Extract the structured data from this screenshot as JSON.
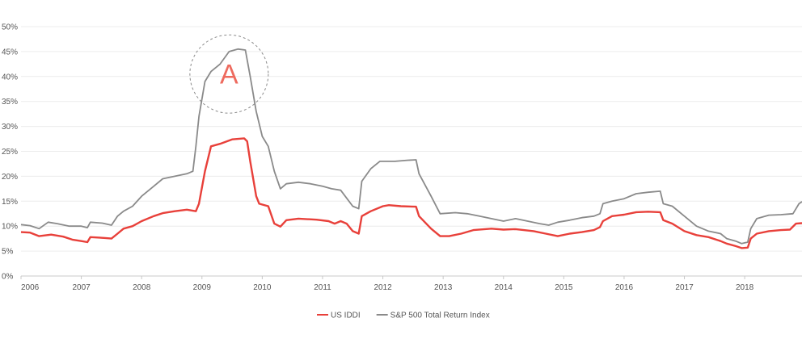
{
  "chart_data": {
    "type": "line",
    "title": "",
    "xlabel": "",
    "ylabel": "",
    "x_range": [
      2006.0,
      2018.95
    ],
    "ylim": [
      0,
      50
    ],
    "y_ticks": [
      0,
      5,
      10,
      15,
      20,
      25,
      30,
      35,
      40,
      45,
      50
    ],
    "y_tick_labels": [
      "0%",
      "5%",
      "10%",
      "15%",
      "20%",
      "25%",
      "30%",
      "35%",
      "40%",
      "45%",
      "50%"
    ],
    "x_ticks": [
      2006,
      2007,
      2008,
      2009,
      2010,
      2011,
      2012,
      2013,
      2014,
      2015,
      2016,
      2017,
      2018
    ],
    "x_tick_labels": [
      "2006",
      "2007",
      "2008",
      "2009",
      "2010",
      "2011",
      "2012",
      "2013",
      "2014",
      "2015",
      "2016",
      "2017",
      "2018"
    ],
    "grid": true,
    "legend_position": "bottom-center",
    "series": [
      {
        "name": "US IDDI",
        "color": "#e8403a",
        "points": [
          [
            2006.0,
            8.8
          ],
          [
            2006.15,
            8.7
          ],
          [
            2006.3,
            8.0
          ],
          [
            2006.5,
            8.3
          ],
          [
            2006.7,
            7.9
          ],
          [
            2006.85,
            7.3
          ],
          [
            2007.0,
            7.0
          ],
          [
            2007.1,
            6.8
          ],
          [
            2007.15,
            7.8
          ],
          [
            2007.3,
            7.7
          ],
          [
            2007.5,
            7.5
          ],
          [
            2007.6,
            8.5
          ],
          [
            2007.7,
            9.5
          ],
          [
            2007.85,
            10.0
          ],
          [
            2008.0,
            11.0
          ],
          [
            2008.2,
            12.0
          ],
          [
            2008.35,
            12.6
          ],
          [
            2008.55,
            13.0
          ],
          [
            2008.75,
            13.3
          ],
          [
            2008.9,
            13.0
          ],
          [
            2008.95,
            14.5
          ],
          [
            2009.05,
            21.0
          ],
          [
            2009.15,
            26.0
          ],
          [
            2009.3,
            26.5
          ],
          [
            2009.5,
            27.4
          ],
          [
            2009.7,
            27.6
          ],
          [
            2009.75,
            27.0
          ],
          [
            2009.8,
            23.0
          ],
          [
            2009.9,
            16.0
          ],
          [
            2009.95,
            14.5
          ],
          [
            2010.1,
            14.0
          ],
          [
            2010.2,
            10.5
          ],
          [
            2010.3,
            9.9
          ],
          [
            2010.4,
            11.2
          ],
          [
            2010.6,
            11.5
          ],
          [
            2010.9,
            11.3
          ],
          [
            2011.1,
            11.0
          ],
          [
            2011.2,
            10.5
          ],
          [
            2011.3,
            11.0
          ],
          [
            2011.4,
            10.5
          ],
          [
            2011.5,
            9.0
          ],
          [
            2011.6,
            8.5
          ],
          [
            2011.65,
            12.0
          ],
          [
            2011.8,
            13.0
          ],
          [
            2012.0,
            14.0
          ],
          [
            2012.1,
            14.2
          ],
          [
            2012.3,
            14.0
          ],
          [
            2012.55,
            13.9
          ],
          [
            2012.6,
            12.0
          ],
          [
            2012.8,
            9.5
          ],
          [
            2012.95,
            8.0
          ],
          [
            2013.1,
            8.0
          ],
          [
            2013.3,
            8.5
          ],
          [
            2013.5,
            9.2
          ],
          [
            2013.8,
            9.5
          ],
          [
            2014.0,
            9.3
          ],
          [
            2014.2,
            9.4
          ],
          [
            2014.5,
            9.0
          ],
          [
            2014.7,
            8.5
          ],
          [
            2014.9,
            8.0
          ],
          [
            2015.1,
            8.5
          ],
          [
            2015.3,
            8.8
          ],
          [
            2015.5,
            9.2
          ],
          [
            2015.6,
            9.8
          ],
          [
            2015.65,
            11.0
          ],
          [
            2015.8,
            12.0
          ],
          [
            2016.0,
            12.3
          ],
          [
            2016.2,
            12.8
          ],
          [
            2016.4,
            12.9
          ],
          [
            2016.6,
            12.8
          ],
          [
            2016.65,
            11.2
          ],
          [
            2016.8,
            10.5
          ],
          [
            2017.0,
            9.0
          ],
          [
            2017.2,
            8.2
          ],
          [
            2017.4,
            7.8
          ],
          [
            2017.6,
            7.0
          ],
          [
            2017.7,
            6.5
          ],
          [
            2017.85,
            6.0
          ],
          [
            2017.95,
            5.6
          ],
          [
            2018.05,
            5.7
          ],
          [
            2018.1,
            7.5
          ],
          [
            2018.2,
            8.5
          ],
          [
            2018.4,
            9.0
          ],
          [
            2018.6,
            9.2
          ],
          [
            2018.75,
            9.3
          ],
          [
            2018.85,
            10.5
          ],
          [
            2018.95,
            10.6
          ]
        ]
      },
      {
        "name": "S&P 500 Total Return Index",
        "color": "#8a8a8a",
        "points": [
          [
            2006.0,
            10.3
          ],
          [
            2006.15,
            10.1
          ],
          [
            2006.3,
            9.5
          ],
          [
            2006.45,
            10.8
          ],
          [
            2006.6,
            10.5
          ],
          [
            2006.8,
            10.0
          ],
          [
            2007.0,
            10.0
          ],
          [
            2007.1,
            9.7
          ],
          [
            2007.15,
            10.8
          ],
          [
            2007.35,
            10.6
          ],
          [
            2007.5,
            10.2
          ],
          [
            2007.6,
            12.0
          ],
          [
            2007.7,
            13.0
          ],
          [
            2007.85,
            14.0
          ],
          [
            2008.0,
            16.0
          ],
          [
            2008.2,
            18.0
          ],
          [
            2008.35,
            19.5
          ],
          [
            2008.55,
            20.0
          ],
          [
            2008.75,
            20.5
          ],
          [
            2008.85,
            21.0
          ],
          [
            2008.9,
            26.0
          ],
          [
            2008.95,
            32.0
          ],
          [
            2009.05,
            39.0
          ],
          [
            2009.15,
            41.0
          ],
          [
            2009.3,
            42.5
          ],
          [
            2009.45,
            45.0
          ],
          [
            2009.6,
            45.5
          ],
          [
            2009.72,
            45.3
          ],
          [
            2009.8,
            40.0
          ],
          [
            2009.9,
            33.0
          ],
          [
            2010.0,
            28.0
          ],
          [
            2010.1,
            26.0
          ],
          [
            2010.2,
            21.0
          ],
          [
            2010.3,
            17.5
          ],
          [
            2010.4,
            18.5
          ],
          [
            2010.6,
            18.8
          ],
          [
            2010.8,
            18.5
          ],
          [
            2011.0,
            18.0
          ],
          [
            2011.15,
            17.5
          ],
          [
            2011.3,
            17.2
          ],
          [
            2011.5,
            14.0
          ],
          [
            2011.6,
            13.5
          ],
          [
            2011.65,
            19.0
          ],
          [
            2011.8,
            21.5
          ],
          [
            2011.95,
            23.0
          ],
          [
            2012.2,
            23.0
          ],
          [
            2012.4,
            23.2
          ],
          [
            2012.55,
            23.3
          ],
          [
            2012.6,
            20.5
          ],
          [
            2012.8,
            16.0
          ],
          [
            2012.95,
            12.5
          ],
          [
            2013.2,
            12.7
          ],
          [
            2013.4,
            12.5
          ],
          [
            2013.6,
            12.0
          ],
          [
            2013.8,
            11.5
          ],
          [
            2014.0,
            11.0
          ],
          [
            2014.2,
            11.5
          ],
          [
            2014.4,
            11.0
          ],
          [
            2014.6,
            10.5
          ],
          [
            2014.75,
            10.2
          ],
          [
            2014.9,
            10.8
          ],
          [
            2015.1,
            11.2
          ],
          [
            2015.3,
            11.7
          ],
          [
            2015.5,
            12.0
          ],
          [
            2015.6,
            12.5
          ],
          [
            2015.65,
            14.5
          ],
          [
            2015.8,
            15.0
          ],
          [
            2016.0,
            15.5
          ],
          [
            2016.2,
            16.5
          ],
          [
            2016.4,
            16.8
          ],
          [
            2016.6,
            17.0
          ],
          [
            2016.65,
            14.5
          ],
          [
            2016.8,
            14.0
          ],
          [
            2017.0,
            12.0
          ],
          [
            2017.2,
            10.0
          ],
          [
            2017.4,
            9.0
          ],
          [
            2017.6,
            8.5
          ],
          [
            2017.7,
            7.5
          ],
          [
            2017.85,
            7.0
          ],
          [
            2017.95,
            6.5
          ],
          [
            2018.05,
            6.8
          ],
          [
            2018.1,
            9.5
          ],
          [
            2018.2,
            11.5
          ],
          [
            2018.4,
            12.2
          ],
          [
            2018.6,
            12.3
          ],
          [
            2018.8,
            12.5
          ],
          [
            2018.9,
            14.5
          ],
          [
            2018.95,
            14.9
          ]
        ]
      }
    ],
    "annotations": [
      {
        "label": "A",
        "x": 2009.45,
        "y": 40.5,
        "radius_years": 0.65,
        "color": "#ee6a5e"
      }
    ]
  }
}
